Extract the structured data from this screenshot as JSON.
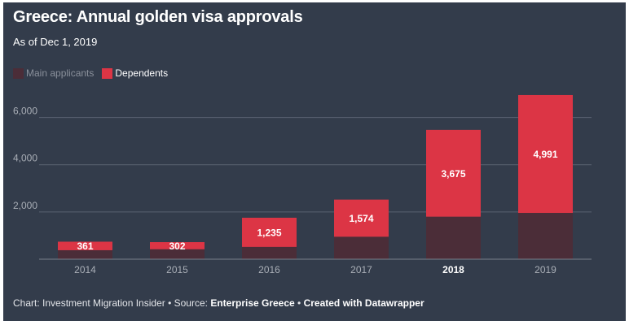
{
  "title": "Greece: Annual golden visa approvals",
  "subtitle": "As of Dec 1, 2019",
  "legend": {
    "main_label": "Main applicants",
    "dependents_label": "Dependents"
  },
  "colors": {
    "background": "#333c4b",
    "main_applicants": "#4b2d38",
    "dependents": "#dc3545",
    "gridline": "#596170",
    "tick_text": "#a9aeb6"
  },
  "footer": {
    "prefix": "Chart: Investment Migration Insider • Source: ",
    "source": "Enterprise Greece",
    "separator": " • ",
    "credit": "Created with Datawrapper"
  },
  "chart_data": {
    "type": "bar",
    "stacked": true,
    "categories": [
      "2014",
      "2015",
      "2016",
      "2017",
      "2018",
      "2019"
    ],
    "highlighted_category": "2018",
    "series": [
      {
        "name": "Main applicants",
        "values": [
          380,
          420,
          520,
          950,
          1800,
          1960
        ],
        "color": "#4b2d38"
      },
      {
        "name": "Dependents",
        "values": [
          361,
          302,
          1235,
          1574,
          3675,
          4991
        ],
        "color": "#dc3545"
      }
    ],
    "data_labels": [
      "361",
      "302",
      "1,235",
      "1,574",
      "3,675",
      "4,991"
    ],
    "yticks": [
      2000,
      4000,
      6000
    ],
    "ytick_labels": [
      "2,000",
      "4,000",
      "6,000"
    ],
    "ylim": [
      0,
      7500
    ],
    "grid": true,
    "legend_position": "top-left"
  }
}
